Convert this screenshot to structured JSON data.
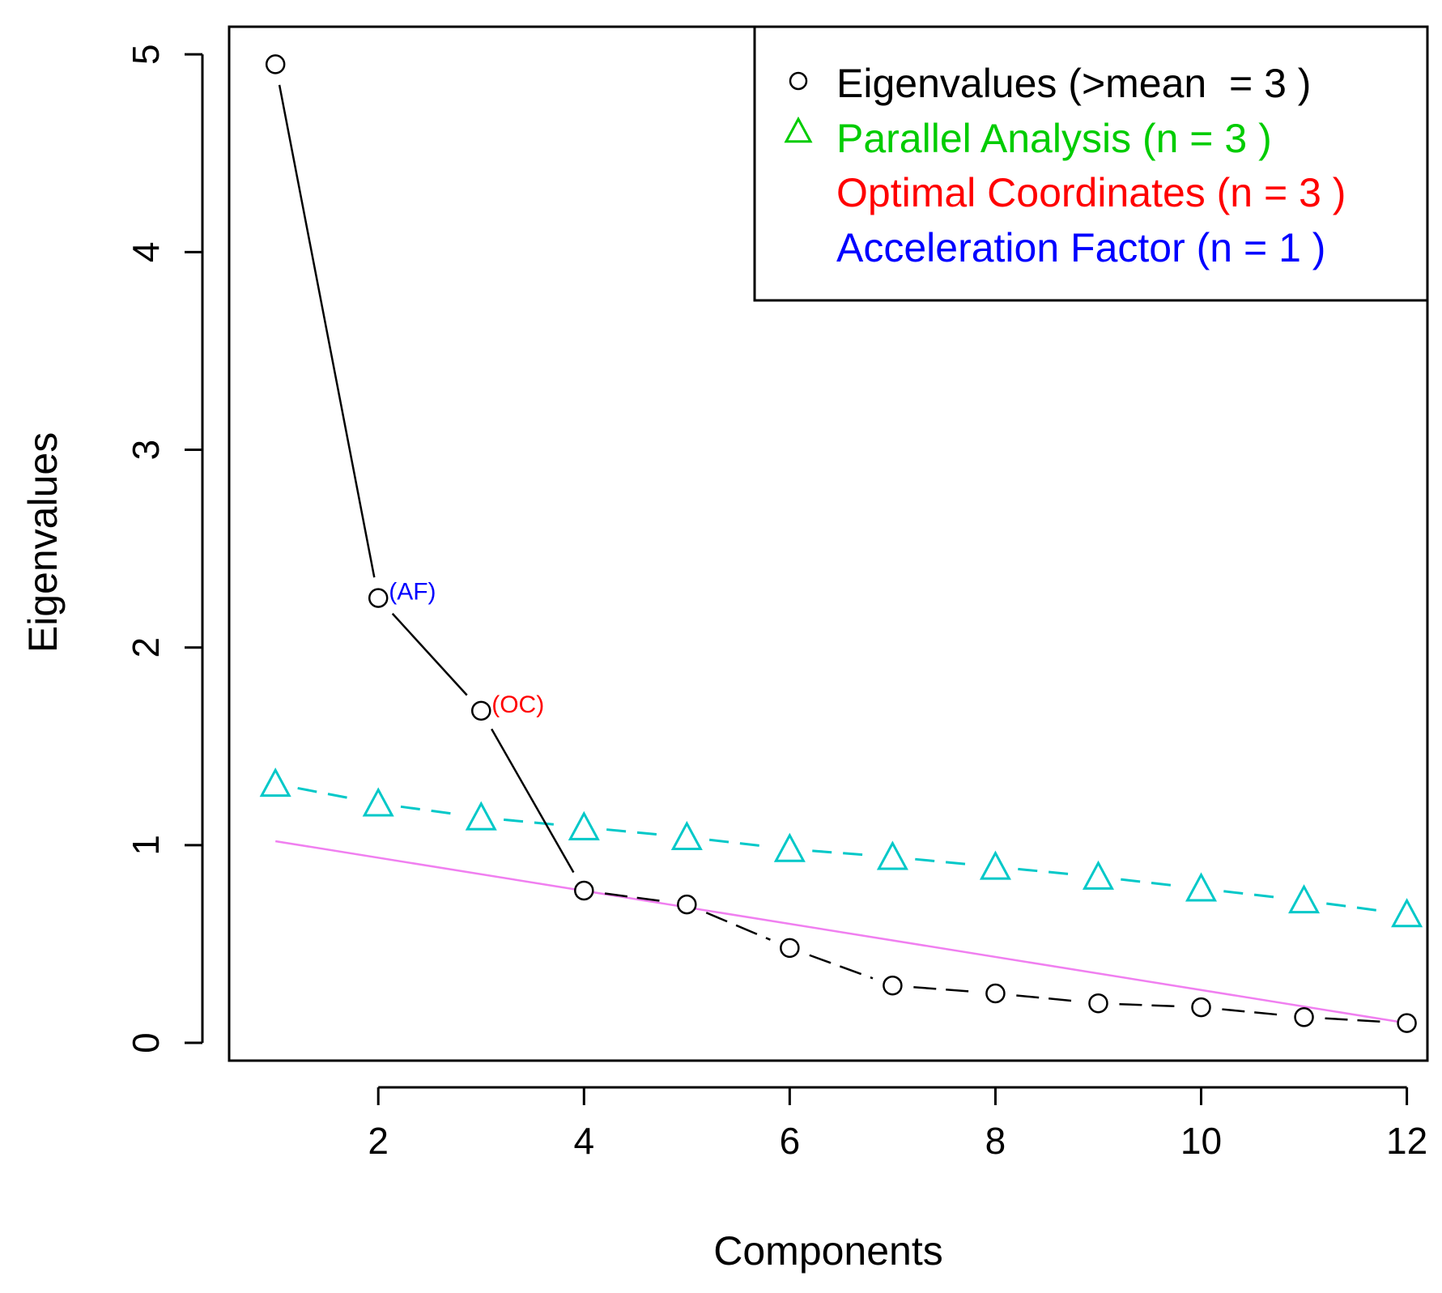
{
  "chart_data": {
    "type": "scatter",
    "title": "",
    "xlabel": "Components",
    "ylabel": "Eigenvalues",
    "xlim": [
      0.55,
      12.2
    ],
    "ylim": [
      -0.09,
      5.14
    ],
    "x_ticks": [
      "2",
      "4",
      "6",
      "8",
      "10",
      "12"
    ],
    "y_ticks": [
      "0",
      "1",
      "2",
      "3",
      "4",
      "5"
    ],
    "grid": false,
    "x": [
      1,
      2,
      3,
      4,
      5,
      6,
      7,
      8,
      9,
      10,
      11,
      12
    ],
    "series": [
      {
        "name": "Eigenvalues",
        "marker": "circle",
        "line": "solid-then-dashed",
        "color": "#000000",
        "values": [
          4.95,
          2.25,
          1.68,
          0.77,
          0.7,
          0.48,
          0.29,
          0.25,
          0.2,
          0.18,
          0.13,
          0.1
        ]
      },
      {
        "name": "Parallel Analysis",
        "marker": "triangle",
        "line": "dashed",
        "color": "#00c8c8",
        "values": [
          1.31,
          1.21,
          1.14,
          1.09,
          1.04,
          0.98,
          0.94,
          0.89,
          0.84,
          0.78,
          0.72,
          0.65
        ]
      },
      {
        "name": "Optimal Coordinates line",
        "marker": "none",
        "line": "solid",
        "color": "#f07ff0",
        "x_range": [
          1,
          12
        ],
        "values": [
          1.02,
          0.1
        ]
      }
    ],
    "annotations": [
      {
        "text": "(AF)",
        "x": 2,
        "y": 2.25,
        "color": "#0000ff"
      },
      {
        "text": "(OC)",
        "x": 3,
        "y": 1.68,
        "color": "#ff0000"
      }
    ],
    "legend": {
      "placement": "top-right",
      "entries": [
        {
          "symbol": "circle",
          "prefix": "Eigenvalues (>mean  = ",
          "value": "3",
          "suffix": " )",
          "color": "#000000",
          "symbol_color": "#000000"
        },
        {
          "symbol": "triangle",
          "prefix": "Parallel Analysis (n = ",
          "value": "3",
          "suffix": " )",
          "color": "#00cc00",
          "symbol_color": "#00cc00"
        },
        {
          "symbol": "none",
          "prefix": "Optimal Coordinates (n = ",
          "value": "3",
          "suffix": " )",
          "color": "#ff0000",
          "symbol_color": ""
        },
        {
          "symbol": "none",
          "prefix": "Acceleration Factor (n = ",
          "value": "1",
          "suffix": " )",
          "color": "#0000ff",
          "symbol_color": ""
        }
      ]
    }
  }
}
